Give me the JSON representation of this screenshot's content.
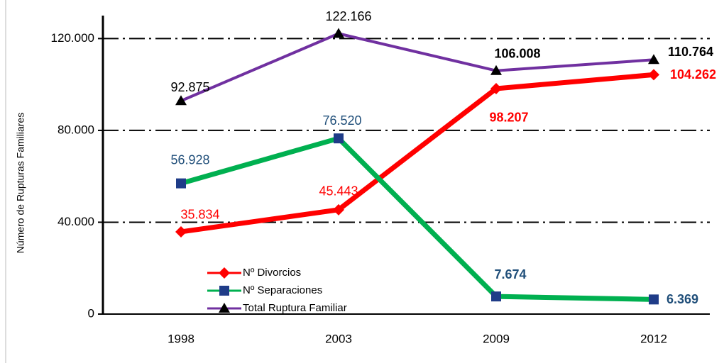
{
  "chart_data": {
    "type": "line",
    "y_label": "Número de Rupturas Familiares",
    "categories": [
      "1998",
      "2003",
      "2009",
      "2012"
    ],
    "ylim": [
      0,
      130000
    ],
    "yticks": [
      0,
      {
        "value": 40000,
        "label": "40.000"
      },
      {
        "value": 80000,
        "label": "80.000"
      },
      {
        "value": 120000,
        "label": "120.000"
      }
    ],
    "grid": true,
    "legend": "bottom-left",
    "series": [
      {
        "name": "Nº Divorcios",
        "color": "#ff0000",
        "marker": "diamond",
        "marker_color": "#ff0000",
        "label_color": "#ff0000",
        "values": [
          35834,
          45443,
          98207,
          104262
        ],
        "value_labels": [
          "35.834",
          "45.443",
          "98.207",
          "104.262"
        ]
      },
      {
        "name": "Nº Separaciones",
        "color": "#00b050",
        "marker": "square",
        "marker_color": "#1f3c88",
        "label_color": "#1f4e79",
        "values": [
          56928,
          76520,
          7674,
          6369
        ],
        "value_labels": [
          "56.928",
          "76.520",
          "7.674",
          "6.369"
        ]
      },
      {
        "name": "Total Ruptura Familiar",
        "color": "#7030a0",
        "marker": "triangle",
        "marker_color": "#000000",
        "label_color": "#000000",
        "values": [
          92875,
          122166,
          106008,
          110764
        ],
        "value_labels": [
          "92.875",
          "122.166",
          "106.008",
          "110.764"
        ]
      }
    ]
  }
}
